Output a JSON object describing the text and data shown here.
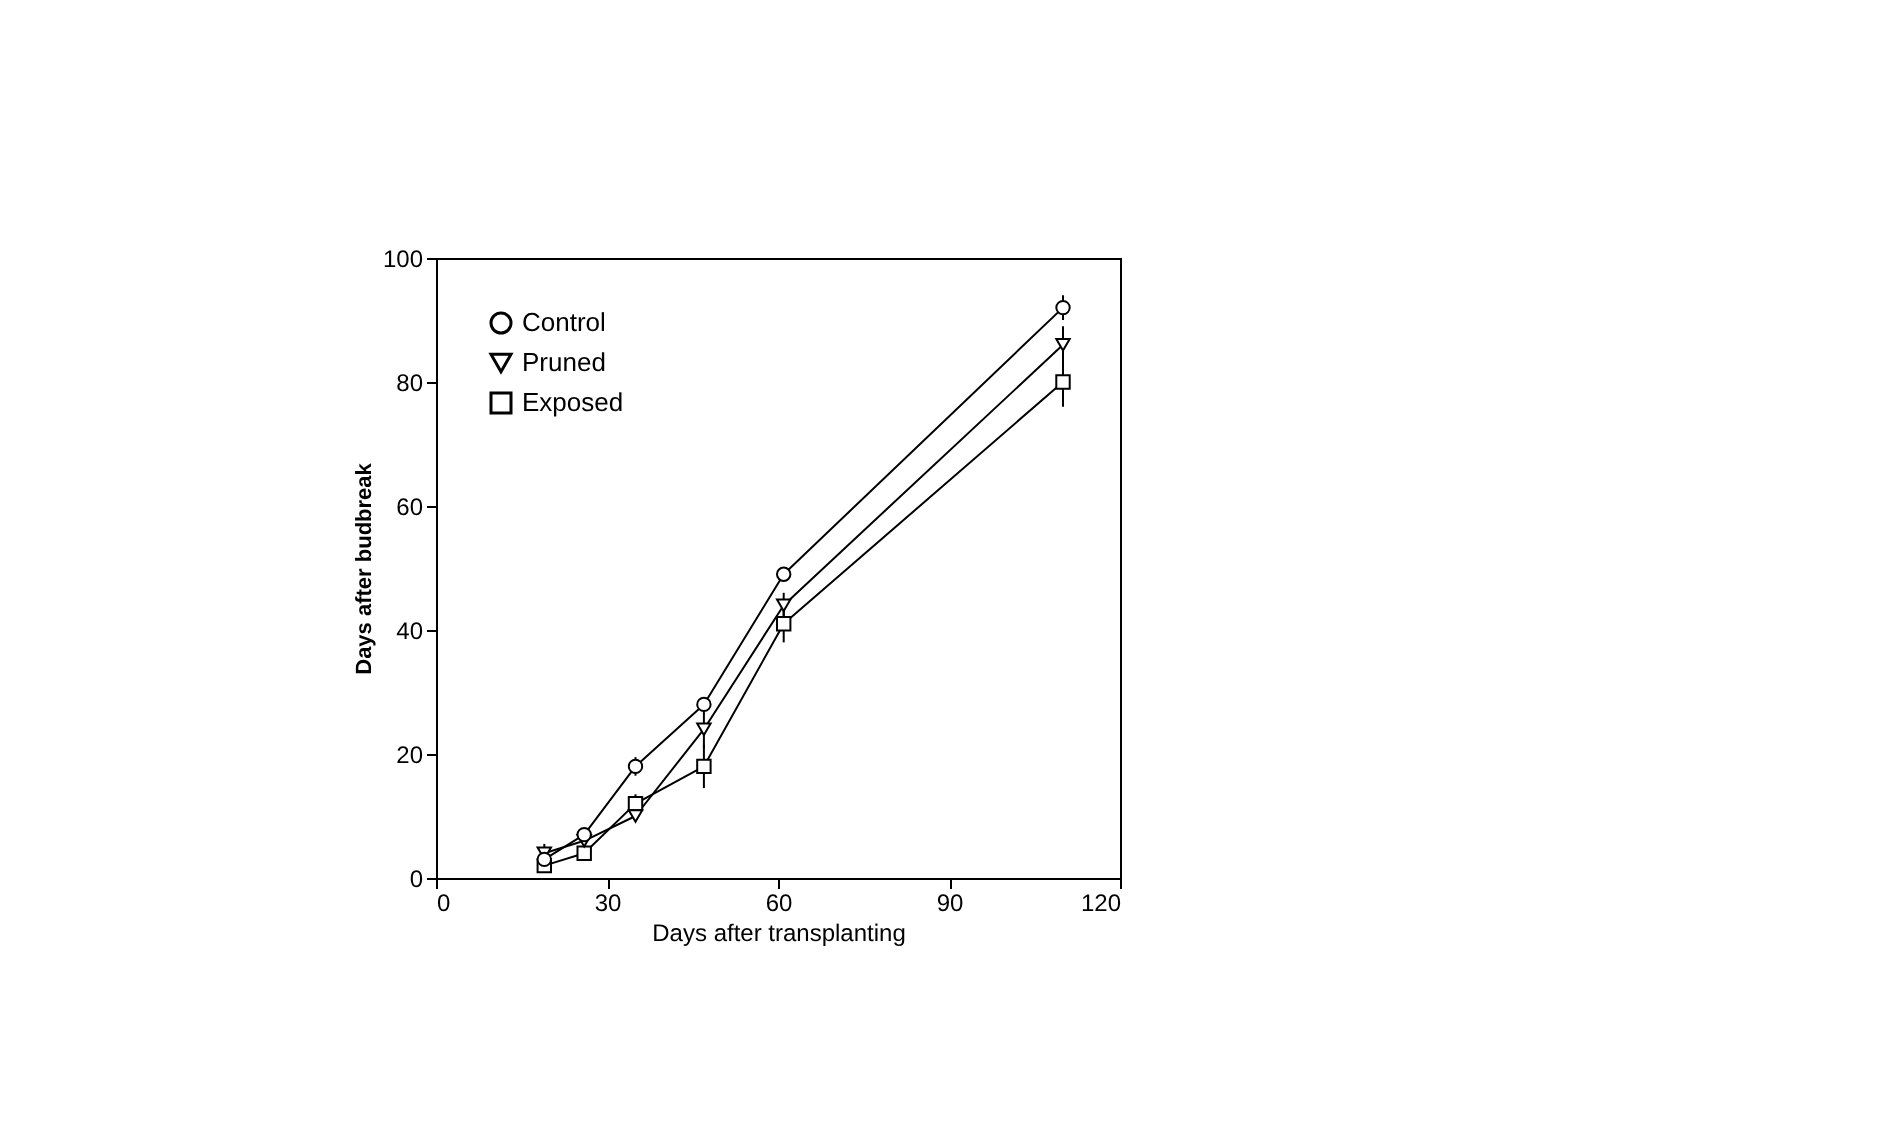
{
  "chart_data": {
    "type": "line",
    "xlabel": "Days after transplanting",
    "ylabel": "Days after budbreak",
    "x": [
      19,
      26,
      35,
      47,
      61,
      110
    ],
    "xlim": [
      0,
      120
    ],
    "xticks": [
      0,
      30,
      60,
      90,
      120
    ],
    "ylim": [
      0,
      100
    ],
    "yticks": [
      0,
      20,
      40,
      60,
      80,
      100
    ],
    "grid": false,
    "legend": "top left",
    "line_style": "solid",
    "series": [
      {
        "name": "Control",
        "color": "#000000",
        "marker": "circle",
        "values": [
          3,
          7,
          18,
          28,
          49,
          92
        ],
        "errors": [
          null,
          null,
          1.5,
          null,
          null,
          2
        ]
      },
      {
        "name": "Pruned",
        "color": "#000000",
        "marker": "triangle",
        "values": [
          4,
          6,
          10,
          24,
          44,
          86
        ],
        "errors": [
          1.5,
          null,
          null,
          3,
          2,
          3
        ]
      },
      {
        "name": "Exposed",
        "color": "#000000",
        "marker": "square",
        "values": [
          2,
          4,
          12,
          18,
          41,
          80
        ],
        "errors": [
          null,
          null,
          1.5,
          3.5,
          3,
          4
        ]
      }
    ]
  }
}
